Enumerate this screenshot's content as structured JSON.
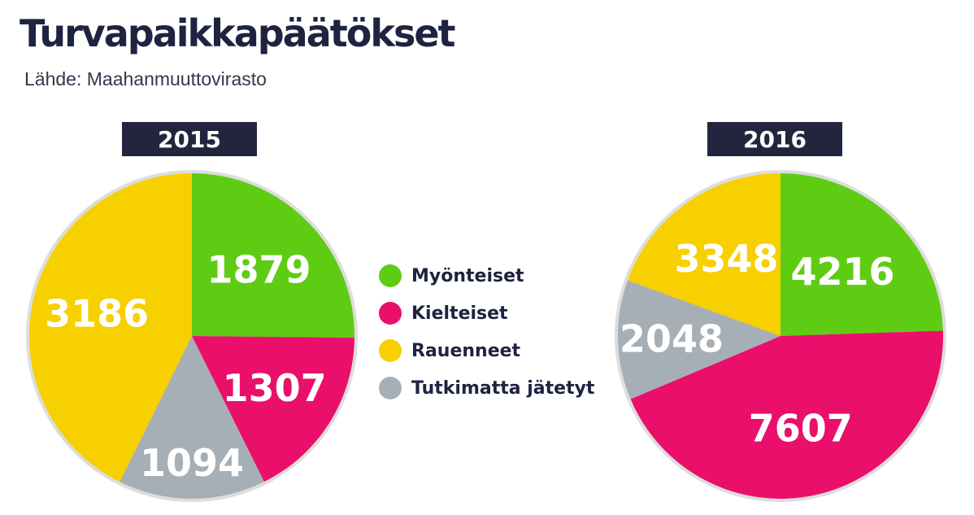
{
  "header": {
    "title": "Turvapaikkapäätökset",
    "source": "Lähde: Maahanmuuttovirasto"
  },
  "colors": {
    "myonteiset": "#5fcc14",
    "kielteiset": "#ea0f6b",
    "rauenneet": "#f7d000",
    "tutkimatta": "#a7afb6",
    "rim": "#dddddd",
    "badge": "#22253d"
  },
  "legend": [
    {
      "label": "Myönteiset",
      "color": "#5fcc14"
    },
    {
      "label": "Kielteiset",
      "color": "#ea0f6b"
    },
    {
      "label": "Rauenneet",
      "color": "#f7d000"
    },
    {
      "label": "Tutkimatta jätetyt",
      "color": "#a7afb6"
    }
  ],
  "chart_data": [
    {
      "type": "pie",
      "title": "2015",
      "categories": [
        "Myönteiset",
        "Kielteiset",
        "Tutkimatta jätetyt",
        "Rauenneet"
      ],
      "values": [
        1879,
        1307,
        1094,
        3186
      ],
      "labels": [
        "1879",
        "1307",
        "1094",
        "3186"
      ],
      "colors": [
        "#5fcc14",
        "#ea0f6b",
        "#a7afb6",
        "#f7d000"
      ]
    },
    {
      "type": "pie",
      "title": "2016",
      "categories": [
        "Myönteiset",
        "Kielteiset",
        "Tutkimatta jätetyt",
        "Rauenneet"
      ],
      "values": [
        4216,
        7607,
        2048,
        3348
      ],
      "labels": [
        "4216",
        "7607",
        "2048",
        "3348"
      ],
      "colors": [
        "#5fcc14",
        "#ea0f6b",
        "#a7afb6",
        "#f7d000"
      ]
    }
  ]
}
